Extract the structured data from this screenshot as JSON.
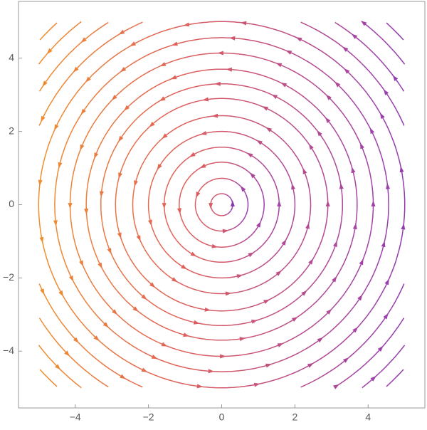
{
  "chart_data": {
    "type": "streamplot",
    "xlim": [
      -5.55,
      5.55
    ],
    "ylim": [
      -5.55,
      5.55
    ],
    "xticks": [
      {
        "value": -4,
        "label": "−4"
      },
      {
        "value": -2,
        "label": "−2"
      },
      0,
      2,
      4
    ],
    "yticks": [
      {
        "value": -4,
        "label": "−4"
      },
      {
        "value": -2,
        "label": "−2"
      },
      0,
      2,
      4
    ],
    "domain": [
      -5,
      5
    ],
    "streamlines": [
      0.3,
      0.72,
      1.16,
      1.57,
      2.0,
      2.43,
      2.9,
      3.3,
      3.7,
      4.14,
      4.56,
      5.0,
      5.43,
      5.86,
      6.3,
      6.7
    ],
    "color_scale": [
      "#f5a31a",
      "#e0605a",
      "#9c3fae",
      "#23179e"
    ]
  }
}
